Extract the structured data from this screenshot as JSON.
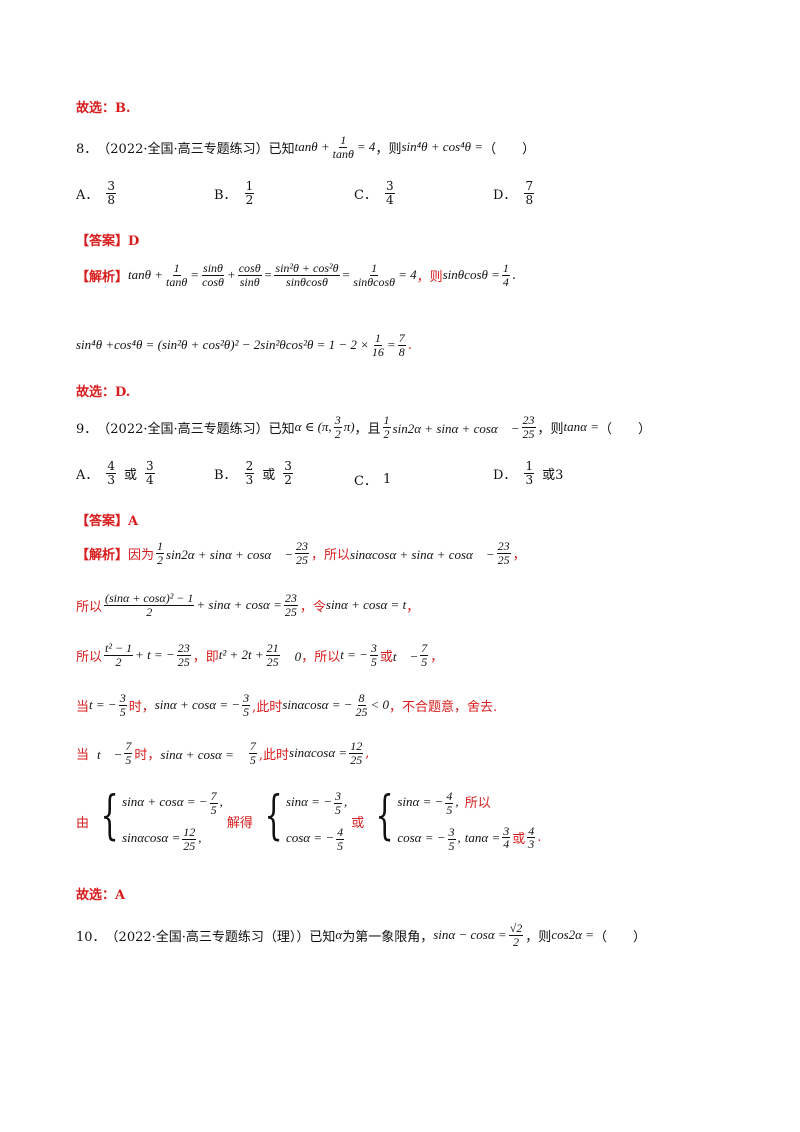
{
  "prev_conclusion": "故选：B.",
  "q8": {
    "num": "8．",
    "source": "（2022·全国·高三专题练习）已知",
    "cond_a": "tanθ +",
    "cond_frac_num": "1",
    "cond_frac_den": "tanθ",
    "cond_b": "= 4",
    "then": "，则",
    "ask": "sin⁴θ + cos⁴θ =",
    "paren": "（　　）",
    "options": [
      {
        "label": "A．",
        "num": "3",
        "den": "8"
      },
      {
        "label": "B．",
        "num": "1",
        "den": "2"
      },
      {
        "label": "C．",
        "num": "3",
        "den": "4"
      },
      {
        "label": "D．",
        "num": "7",
        "den": "8"
      }
    ],
    "answer_tag": "【答案】",
    "answer": "D",
    "analysis_tag": "【解析】",
    "eq1": "tanθ +",
    "eq1_f1_n": "1",
    "eq1_f1_d": "tanθ",
    "eq1_f2_n": "sinθ",
    "eq1_f2_d": "cosθ",
    "eq1_f3_n": "cosθ",
    "eq1_f3_d": "sinθ",
    "eq1_f4_n": "sin²θ + cos²θ",
    "eq1_f4_d": "sinθcosθ",
    "eq1_f5_n": "1",
    "eq1_f5_d": "sinθcosθ",
    "eq1_end": "= 4",
    "eq1_then": "，则",
    "eq1_res": "sinθcosθ =",
    "eq1_res_n": "1",
    "eq1_res_d": "4",
    "eq2_a": "sin⁴θ +",
    "eq2_b": "cos⁴θ = (sin²θ + cos²θ)² − 2sin²θcos²θ = 1 − 2 ×",
    "eq2_f1_n": "1",
    "eq2_f1_d": "16",
    "eq2_f2_n": "7",
    "eq2_f2_d": "8",
    "conclusion": "故选：D."
  },
  "q9": {
    "num": "9．",
    "source": "（2022·全国·高三专题练习）已知",
    "cond": "α ∈ (π,",
    "cond_n": "3",
    "cond_d": "2",
    "cond_end": "π)",
    "and": "，且",
    "eq_n": "1",
    "eq_d": "2",
    "eq_body": "sin2α + sinα + cosα　−",
    "eq_rn": "23",
    "eq_rd": "25",
    "then": "，则",
    "ask": "tanα =",
    "paren": "（　　）",
    "optA_label": "A．",
    "optA_n1": "4",
    "optA_d1": "3",
    "optA_or": "或",
    "optA_n2": "3",
    "optA_d2": "4",
    "optB_label": "B．",
    "optB_n1": "2",
    "optB_d1": "3",
    "optB_or": "或",
    "optB_n2": "3",
    "optB_d2": "2",
    "optC_label": "C．",
    "optC_val": "1",
    "optD_label": "D．",
    "optD_n1": "1",
    "optD_d1": "3",
    "optD_or": "或3",
    "answer_tag": "【答案】",
    "answer": "A",
    "analysis_tag": "【解析】",
    "l1_because": "因为",
    "l1_eq": "sin2α + sinα + cosα　−",
    "l1_so": "，所以",
    "l1_eq2": "sinαcosα + sinα + cosα　−",
    "l1_comma": "，",
    "l2_so": "所以",
    "l2_num": "(sinα + cosα)² − 1",
    "l2_den": "2",
    "l2_mid": "+ sinα + cosα =",
    "l2_rn": "23",
    "l2_rd": "25",
    "l2_let": "，令",
    "l2_t": "sinα + cosα = t",
    "l2_end": "，",
    "l3_so": "所以",
    "l3_num": "t² − 1",
    "l3_den": "2",
    "l3_mid": "+ t = −",
    "l3_rn": "23",
    "l3_rd": "25",
    "l3_ie": "，即",
    "l3_eq": "t² + 2t +",
    "l3_en": "21",
    "l3_ed": "25",
    "l3_zero": "　0",
    "l3_so2": "，所以",
    "l3_t1": "t = −",
    "l3_t1n": "3",
    "l3_t1d": "5",
    "l3_or": "或",
    "l3_t2": "t　−",
    "l3_t2n": "7",
    "l3_t2d": "5",
    "l3_end": "，",
    "l4_when": "当",
    "l4_t": "t = −",
    "l4_tn": "3",
    "l4_td": "5",
    "l4_shi": "时，",
    "l4_eq": "sinα + cosα = −",
    "l4_en": "3",
    "l4_ed": "5",
    "l4_now": ",此时",
    "l4_eq2": "sinαcosα = −",
    "l4_e2n": "8",
    "l4_e2d": "25",
    "l4_lt": "< 0",
    "l4_end": "，不合题意，舍去.",
    "l5_when": "当",
    "l5_t": "t　−",
    "l5_tn": "7",
    "l5_td": "5",
    "l5_shi": "时，",
    "l5_eq": "sinα + cosα =　",
    "l5_en": "7",
    "l5_ed": "5",
    "l5_now": ",此时",
    "l5_eq2": "sinαcosα =",
    "l5_e2n": "12",
    "l5_e2d": "25",
    "l5_end": ",",
    "l6_from": "由",
    "sys1_a": "sinα + cosα = −",
    "sys1_an": "7",
    "sys1_ad": "5",
    "sys1_b": "sinαcosα =",
    "sys1_bn": "12",
    "sys1_bd": "25",
    "l6_solve": "解得",
    "sys2_a": "sinα = −",
    "sys2_an": "3",
    "sys2_ad": "5",
    "sys2_b": "cosα = −",
    "sys2_bn": "4",
    "sys2_bd": "5",
    "l6_or": "或",
    "sys3_a": "sinα = −",
    "sys3_an": "4",
    "sys3_ad": "5",
    "sys3_b": "cosα = −",
    "sys3_bn": "3",
    "sys3_bd": "5",
    "l6_so": "所以",
    "l6_tan": "tanα =",
    "l6_tn": "3",
    "l6_td": "4",
    "l6_or2": "或",
    "l6_t2n": "4",
    "l6_t2d": "3",
    "conclusion": "故选：A"
  },
  "q10": {
    "num": "10．",
    "source": "（2022·全国·高三专题练习（理））已知",
    "alpha": "α",
    "quad": "为第一象限角，",
    "cond": "sinα − cosα =",
    "cond_n": "√2",
    "cond_d": "2",
    "then": "，则",
    "ask": "cos2α =",
    "paren": "（　　）"
  }
}
